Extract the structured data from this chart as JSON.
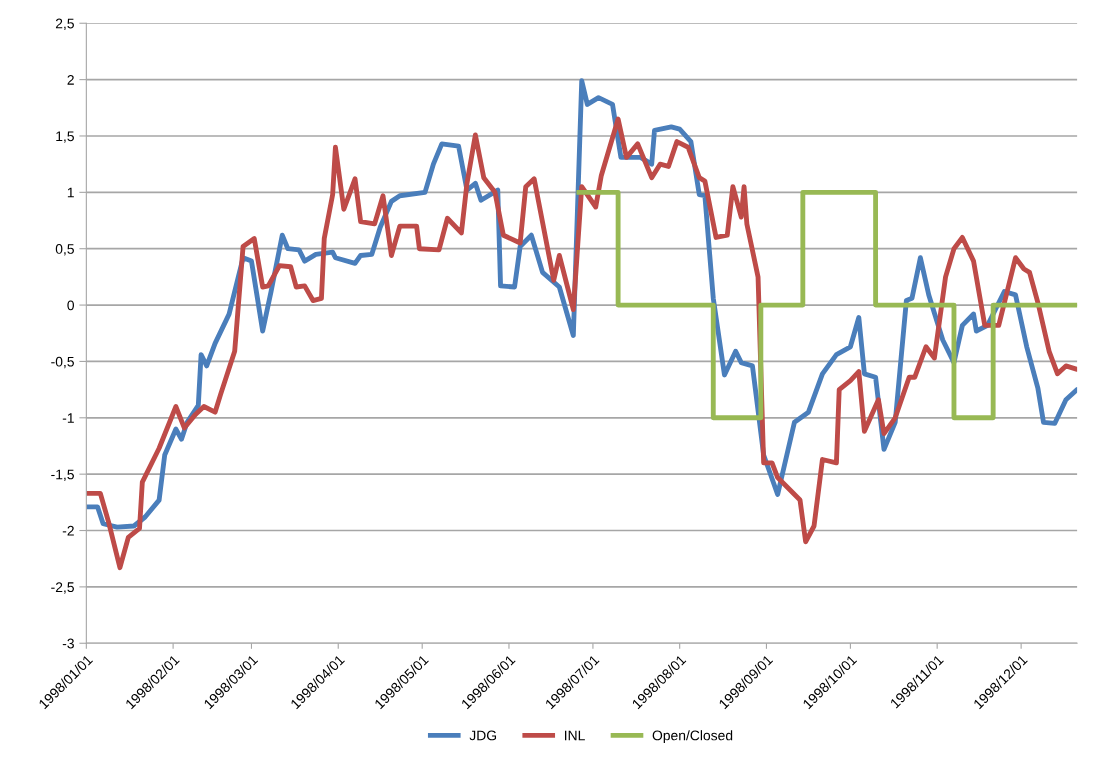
{
  "chart_data": {
    "type": "line",
    "xlim": [
      "1998-01-01",
      "1998-12-21"
    ],
    "xticks": [
      {
        "value": "1998-01-01",
        "label": "1998/01/01"
      },
      {
        "value": "1998-02-01",
        "label": "1998/02/01"
      },
      {
        "value": "1998-03-01",
        "label": "1998/03/01"
      },
      {
        "value": "1998-04-01",
        "label": "1998/04/01"
      },
      {
        "value": "1998-05-01",
        "label": "1998/05/01"
      },
      {
        "value": "1998-06-01",
        "label": "1998/06/01"
      },
      {
        "value": "1998-07-01",
        "label": "1998/07/01"
      },
      {
        "value": "1998-08-01",
        "label": "1998/08/01"
      },
      {
        "value": "1998-09-01",
        "label": "1998/09/01"
      },
      {
        "value": "1998-10-01",
        "label": "1998/10/01"
      },
      {
        "value": "1998-11-01",
        "label": "1998/11/01"
      },
      {
        "value": "1998-12-01",
        "label": "1998/12/01"
      }
    ],
    "ylim": [
      -3,
      2.5
    ],
    "yticks": [
      {
        "value": -3,
        "label": "-3"
      },
      {
        "value": -2.5,
        "label": "-2,5"
      },
      {
        "value": -2,
        "label": "-2"
      },
      {
        "value": -1.5,
        "label": "-1,5"
      },
      {
        "value": -1,
        "label": "-1"
      },
      {
        "value": -0.5,
        "label": "-0,5"
      },
      {
        "value": 0,
        "label": "0"
      },
      {
        "value": 0.5,
        "label": "0,5"
      },
      {
        "value": 1,
        "label": "1"
      },
      {
        "value": 1.5,
        "label": "1,5"
      },
      {
        "value": 2,
        "label": "2"
      },
      {
        "value": 2.5,
        "label": "2,5"
      }
    ],
    "grid": "y",
    "legend": "bottom",
    "series": [
      {
        "name": "JDG",
        "color": "#4a7ebb",
        "x": [
          "1998-01-01",
          "1998-01-05",
          "1998-01-07",
          "1998-01-12",
          "1998-01-18",
          "1998-01-22",
          "1998-01-27",
          "1998-01-29",
          "1998-02-02",
          "1998-02-04",
          "1998-02-06",
          "1998-02-10",
          "1998-02-11",
          "1998-02-13",
          "1998-02-16",
          "1998-02-21",
          "1998-02-26",
          "1998-03-01",
          "1998-03-05",
          "1998-03-08",
          "1998-03-12",
          "1998-03-14",
          "1998-03-18",
          "1998-03-20",
          "1998-03-24",
          "1998-03-30",
          "1998-03-31",
          "1998-04-07",
          "1998-04-09",
          "1998-04-13",
          "1998-04-16",
          "1998-04-20",
          "1998-04-23",
          "1998-05-02",
          "1998-05-05",
          "1998-05-08",
          "1998-05-14",
          "1998-05-17",
          "1998-05-20",
          "1998-05-22",
          "1998-05-28",
          "1998-05-29",
          "1998-06-03",
          "1998-06-05",
          "1998-06-09",
          "1998-06-13",
          "1998-06-19",
          "1998-06-24",
          "1998-06-27",
          "1998-06-29",
          "1998-07-03",
          "1998-07-08",
          "1998-07-11",
          "1998-07-18",
          "1998-07-22",
          "1998-07-23",
          "1998-07-29",
          "1998-08-01",
          "1998-08-05",
          "1998-08-08",
          "1998-08-10",
          "1998-08-13",
          "1998-08-17",
          "1998-08-21",
          "1998-08-23",
          "1998-08-27",
          "1998-08-31",
          "1998-09-05",
          "1998-09-11",
          "1998-09-16",
          "1998-09-21",
          "1998-09-26",
          "1998-10-01",
          "1998-10-04",
          "1998-10-06",
          "1998-10-10",
          "1998-10-13",
          "1998-10-17",
          "1998-10-21",
          "1998-10-23",
          "1998-10-26",
          "1998-10-29",
          "1998-11-03",
          "1998-11-07",
          "1998-11-10",
          "1998-11-14",
          "1998-11-15",
          "1998-11-19",
          "1998-11-25",
          "1998-11-29",
          "1998-12-03",
          "1998-12-07",
          "1998-12-09",
          "1998-12-13",
          "1998-12-17",
          "1998-12-21"
        ],
        "values": [
          -1.79,
          -1.79,
          -1.94,
          -1.97,
          -1.96,
          -1.88,
          -1.73,
          -1.33,
          -1.1,
          -1.19,
          -1.04,
          -0.89,
          -0.44,
          -0.54,
          -0.34,
          -0.08,
          0.42,
          0.39,
          -0.23,
          0.12,
          0.62,
          0.5,
          0.49,
          0.39,
          0.45,
          0.47,
          0.42,
          0.37,
          0.44,
          0.45,
          0.69,
          0.92,
          0.97,
          1.0,
          1.25,
          1.43,
          1.41,
          1.02,
          1.08,
          0.93,
          1.02,
          0.17,
          0.16,
          0.52,
          0.62,
          0.29,
          0.16,
          -0.27,
          1.99,
          1.78,
          1.84,
          1.78,
          1.31,
          1.31,
          1.25,
          1.55,
          1.58,
          1.56,
          1.45,
          0.98,
          0.97,
          0.06,
          -0.62,
          -0.41,
          -0.51,
          -0.54,
          -1.33,
          -1.68,
          -1.04,
          -0.95,
          -0.61,
          -0.44,
          -0.37,
          -0.11,
          -0.61,
          -0.64,
          -1.28,
          -1.04,
          0.04,
          0.06,
          0.42,
          0.09,
          -0.31,
          -0.51,
          -0.18,
          -0.08,
          -0.23,
          -0.18,
          0.12,
          0.09,
          -0.37,
          -0.74,
          -1.04,
          -1.05,
          -0.84,
          -0.75
        ]
      },
      {
        "name": "INL",
        "color": "#be4b48",
        "x": [
          "1998-01-01",
          "1998-01-06",
          "1998-01-09",
          "1998-01-13",
          "1998-01-16",
          "1998-01-20",
          "1998-01-21",
          "1998-01-27",
          "1998-02-02",
          "1998-02-05",
          "1998-02-09",
          "1998-02-12",
          "1998-02-16",
          "1998-02-18",
          "1998-02-23",
          "1998-02-26",
          "1998-03-02",
          "1998-03-05",
          "1998-03-07",
          "1998-03-11",
          "1998-03-15",
          "1998-03-17",
          "1998-03-20",
          "1998-03-23",
          "1998-03-26",
          "1998-03-27",
          "1998-03-30",
          "1998-03-31",
          "1998-04-03",
          "1998-04-07",
          "1998-04-09",
          "1998-04-14",
          "1998-04-17",
          "1998-04-20",
          "1998-04-23",
          "1998-04-29",
          "1998-04-30",
          "1998-05-07",
          "1998-05-10",
          "1998-05-15",
          "1998-05-17",
          "1998-05-20",
          "1998-05-23",
          "1998-05-27",
          "1998-05-30",
          "1998-06-05",
          "1998-06-07",
          "1998-06-10",
          "1998-06-17",
          "1998-06-19",
          "1998-06-24",
          "1998-06-27",
          "1998-07-02",
          "1998-07-04",
          "1998-07-10",
          "1998-07-13",
          "1998-07-17",
          "1998-07-22",
          "1998-07-25",
          "1998-07-28",
          "1998-07-31",
          "1998-08-04",
          "1998-08-08",
          "1998-08-10",
          "1998-08-14",
          "1998-08-18",
          "1998-08-20",
          "1998-08-23",
          "1998-08-24",
          "1998-08-25",
          "1998-08-29",
          "1998-08-31",
          "1998-09-03",
          "1998-09-05",
          "1998-09-13",
          "1998-09-15",
          "1998-09-18",
          "1998-09-21",
          "1998-09-26",
          "1998-09-27",
          "1998-10-01",
          "1998-10-04",
          "1998-10-06",
          "1998-10-11",
          "1998-10-13",
          "1998-10-17",
          "1998-10-22",
          "1998-10-24",
          "1998-10-28",
          "1998-10-31",
          "1998-11-04",
          "1998-11-07",
          "1998-11-10",
          "1998-11-14",
          "1998-11-18",
          "1998-11-23",
          "1998-11-29",
          "1998-12-02",
          "1998-12-04",
          "1998-12-07",
          "1998-12-11",
          "1998-12-14",
          "1998-12-17",
          "1998-12-21"
        ],
        "values": [
          -1.67,
          -1.67,
          -1.93,
          -2.33,
          -2.06,
          -1.98,
          -1.57,
          -1.27,
          -0.9,
          -1.09,
          -0.97,
          -0.9,
          -0.95,
          -0.79,
          -0.41,
          0.52,
          0.59,
          0.16,
          0.17,
          0.35,
          0.34,
          0.16,
          0.17,
          0.04,
          0.06,
          0.59,
          0.98,
          1.4,
          0.85,
          1.12,
          0.74,
          0.72,
          0.97,
          0.44,
          0.7,
          0.7,
          0.5,
          0.49,
          0.77,
          0.64,
          1.08,
          1.51,
          1.13,
          1.0,
          0.62,
          0.55,
          1.05,
          1.12,
          0.22,
          0.44,
          -0.04,
          1.05,
          0.87,
          1.15,
          1.65,
          1.31,
          1.43,
          1.13,
          1.25,
          1.23,
          1.45,
          1.4,
          1.13,
          1.1,
          0.6,
          0.62,
          1.05,
          0.78,
          1.05,
          0.72,
          0.25,
          -1.4,
          -1.4,
          -1.53,
          -1.73,
          -2.1,
          -1.96,
          -1.37,
          -1.4,
          -0.75,
          -0.67,
          -0.59,
          -1.12,
          -0.84,
          -1.14,
          -1.0,
          -0.64,
          -0.64,
          -0.37,
          -0.47,
          0.25,
          0.5,
          0.6,
          0.39,
          -0.18,
          -0.18,
          0.42,
          0.32,
          0.29,
          0.02,
          -0.41,
          -0.61,
          -0.54,
          -0.57
        ]
      },
      {
        "name": "Open/Closed",
        "color": "#98b954",
        "type": "step",
        "x": [
          "1998-06-26",
          "1998-07-10",
          "1998-08-13",
          "1998-08-30",
          "1998-09-14",
          "1998-10-10",
          "1998-11-07",
          "1998-11-21",
          "1998-12-21"
        ],
        "values": [
          1,
          0,
          -1,
          0,
          1,
          0,
          -1,
          0,
          0
        ]
      }
    ]
  }
}
